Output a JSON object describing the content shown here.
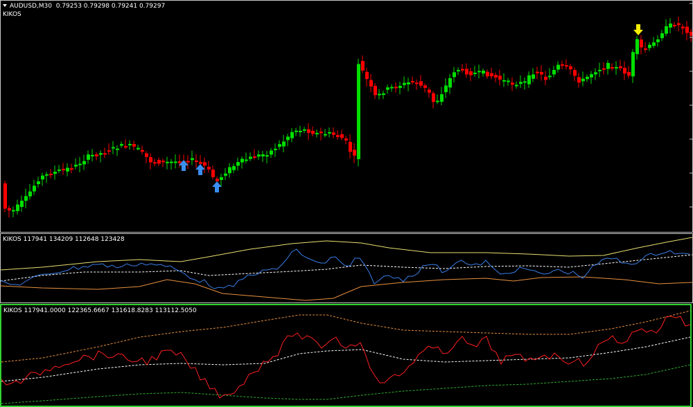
{
  "main_pane": {
    "symbol_timeframe": "AUDUSD,M30",
    "ohlc": "0.79253 0.79298 0.79241 0.79297",
    "indicator_name": "KIKOS"
  },
  "indicator1": {
    "label": "KIKOS 117941 134209 112648 123428"
  },
  "indicator2": {
    "label": "KIKOS 117941.0000 122365.6667 131618.8283 113112.5050"
  },
  "colors": {
    "bull": "#00e000",
    "bear": "#ff0000",
    "buy_arrow": "#3a8ef0",
    "sell_arrow": "#f5ee00",
    "blue_line": "#3a7ee8",
    "yellow_band": "#e8e070",
    "orange_band": "#e89040",
    "red_line": "#ff2020",
    "green_band": "#30b030",
    "active_border": "#32d232"
  },
  "icons": [
    "dropdown-triangle-icon",
    "buy-arrow-icon",
    "sell-arrow-icon"
  ]
}
